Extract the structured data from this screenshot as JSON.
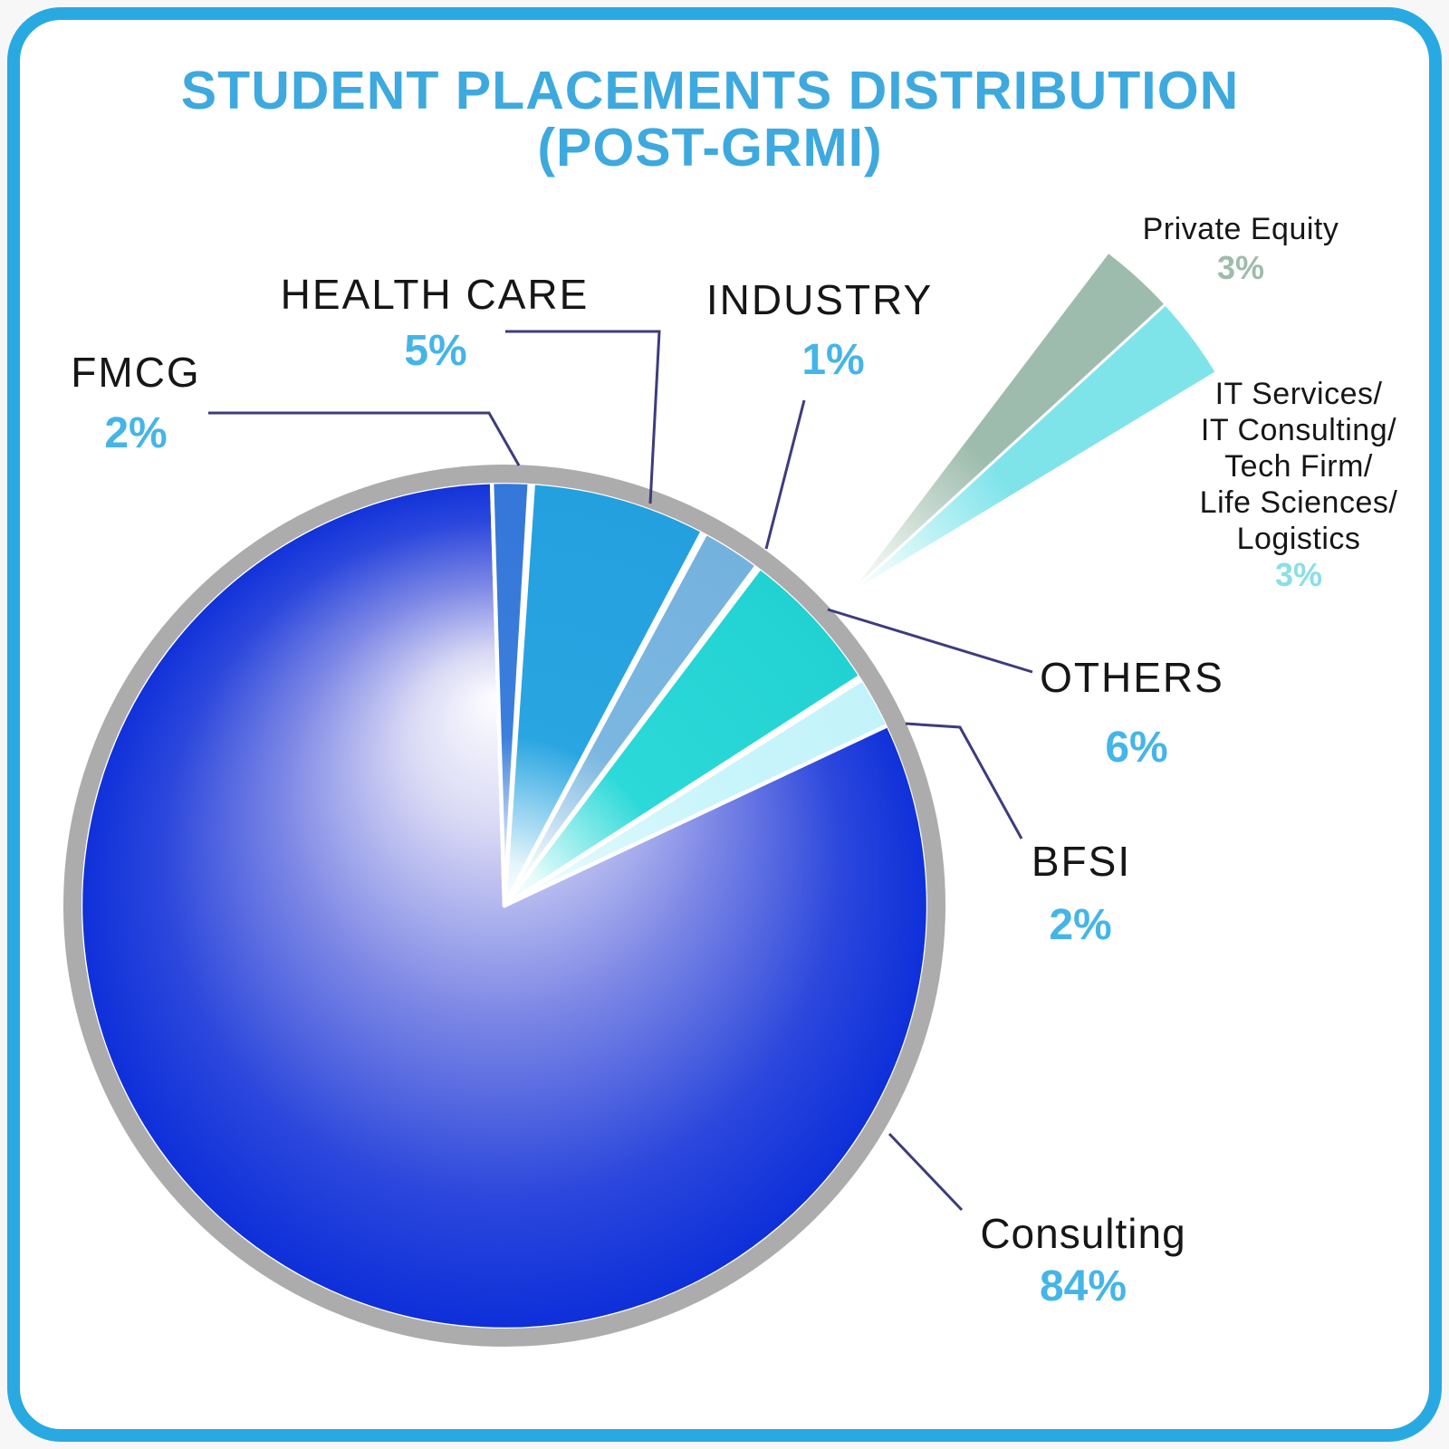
{
  "title": {
    "line1": "STUDENT PLACEMENTS DISTRIBUTION",
    "line2": "(POST-GRMI)"
  },
  "chart_data": {
    "type": "pie",
    "title": "STUDENT PLACEMENTS DISTRIBUTION (POST-GRMI)",
    "unit": "percent",
    "legend_position": "callout-labels",
    "slices": [
      {
        "id": "consulting",
        "label": "Consulting",
        "value": 84,
        "display": "84%",
        "color": "#0B2DD9"
      },
      {
        "id": "fmcg",
        "label": "FMCG",
        "value": 2,
        "display": "2%",
        "color": "#3B7EDB"
      },
      {
        "id": "hc",
        "label": "HEALTH CARE",
        "value": 5,
        "display": "5%",
        "color": "#29A5E1"
      },
      {
        "id": "ind",
        "label": "INDUSTRY",
        "value": 1,
        "display": "1%",
        "color": "#7BB7E0"
      },
      {
        "id": "others",
        "label": "OTHERS",
        "value": 6,
        "display": "6%",
        "color": "#2BD9D8"
      },
      {
        "id": "bfsi",
        "label": "BFSI",
        "value": 2,
        "display": "2%",
        "color": "#C9F5FB"
      }
    ],
    "exploded_breakdown": {
      "of": "OTHERS",
      "slices": [
        {
          "id": "pe",
          "label": "Private Equity",
          "value": 3,
          "display": "3%",
          "color": "#9EBCAD"
        },
        {
          "id": "it",
          "label": "IT Services/ IT Consulting/ Tech Firm/ Life Sciences/ Logistics",
          "value": 3,
          "display": "3%",
          "color": "#7FE4EA"
        }
      ]
    }
  },
  "labels": {
    "fmcg": {
      "name": "FMCG",
      "pct": "2%"
    },
    "hc": {
      "name": "HEALTH CARE",
      "pct": "5%"
    },
    "ind": {
      "name": "INDUSTRY",
      "pct": "1%"
    },
    "others": {
      "name": "OTHERS",
      "pct": "6%"
    },
    "bfsi": {
      "name": "BFSI",
      "pct": "2%"
    },
    "consulting": {
      "name": "Consulting",
      "pct": "84%"
    },
    "pe": {
      "name": "Private Equity",
      "pct": "3%"
    },
    "it": {
      "lines": [
        "IT Services/",
        "IT Consulting/",
        "Tech Firm/",
        "Life Sciences/",
        "Logistics"
      ],
      "pct": "3%"
    }
  },
  "colors": {
    "frame_border": "#29A9E1",
    "background": "#FFFFFF",
    "title_text": "#3EA9DE",
    "category_text": "#161616",
    "percent_text": "#45B5E8",
    "leader_line": "#3D3C7C",
    "pie_rim": "#ACACAC",
    "consulting_deep": "#0B2DD9",
    "consulting_light": "#FDFDFF",
    "fmcg": "#3B7EDB",
    "health_care": "#29A5E1",
    "industry": "#7BB7E0",
    "others": "#2BD9D8",
    "bfsi": "#C9F5FB",
    "private_equity": "#9EBCAD",
    "it_services": "#7FE4EA"
  }
}
